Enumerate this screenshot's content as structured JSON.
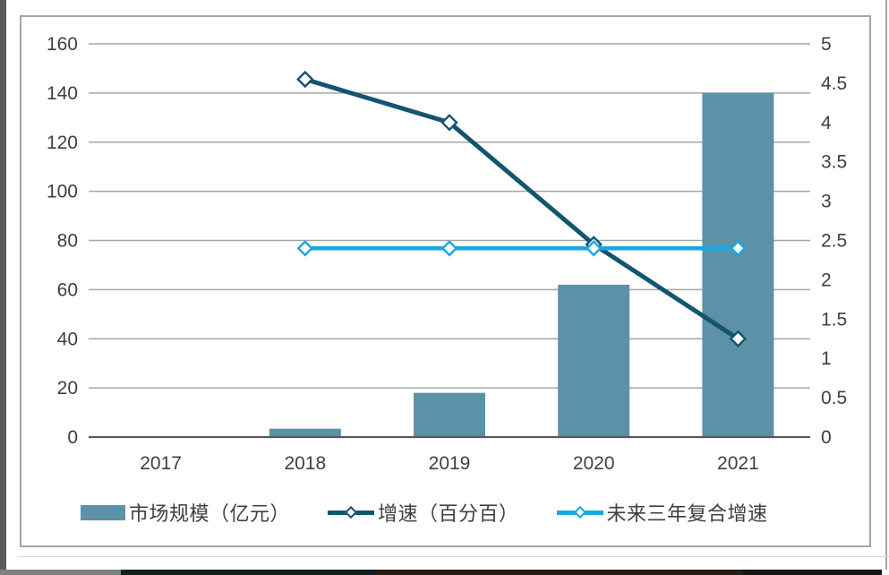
{
  "chart_data": {
    "type": "combo",
    "categories": [
      "2017",
      "2018",
      "2019",
      "2020",
      "2021"
    ],
    "series": [
      {
        "name": "市场规模（亿元）",
        "type": "bar",
        "axis": "left",
        "color": "#5c91a8",
        "values": [
          0,
          3.4,
          18,
          62,
          140
        ]
      },
      {
        "name": "增速（百分百）",
        "type": "line",
        "axis": "right",
        "color": "#13556e",
        "marker": "hollow-diamond",
        "x": [
          "2018",
          "2019",
          "2020",
          "2021"
        ],
        "values": [
          4.55,
          4.0,
          2.45,
          1.25
        ]
      },
      {
        "name": "未来三年复合增速",
        "type": "line",
        "axis": "right",
        "color": "#18a6e2",
        "marker": "hollow-diamond",
        "x": [
          "2018",
          "2019",
          "2020",
          "2021"
        ],
        "values": [
          2.4,
          2.4,
          2.4,
          2.4
        ]
      }
    ],
    "title": "",
    "xlabel": "",
    "ylabel_left": "",
    "ylabel_right": "",
    "left_axis": {
      "min": 0,
      "max": 160,
      "step": 20,
      "ticks": [
        "0",
        "20",
        "40",
        "60",
        "80",
        "100",
        "120",
        "140",
        "160"
      ]
    },
    "right_axis": {
      "min": 0,
      "max": 5,
      "step": 0.5,
      "ticks": [
        "0",
        "0.5",
        "1",
        "1.5",
        "2",
        "2.5",
        "3",
        "3.5",
        "4",
        "4.5",
        "5"
      ]
    },
    "grid": true,
    "legend_position": "bottom",
    "colors": {
      "gridline": "#a6a6a6",
      "axis_line": "#595959",
      "tick_text": "#404040",
      "frame_border": "#a6a6a6",
      "background": "#ffffff"
    }
  },
  "legend": {
    "items": [
      {
        "label": "市场规模（亿元）",
        "swatch": "bar",
        "color": "#5c91a8"
      },
      {
        "label": "增速（百分百）",
        "swatch": "line",
        "color": "#13556e"
      },
      {
        "label": "未来三年复合增速",
        "swatch": "line",
        "color": "#18a6e2"
      }
    ]
  },
  "window": {
    "left_edge_color": "#5a5a5a",
    "right_edge_color": "#a6a6a6",
    "divider_color": "#d9d9d9",
    "bottom_strip_colors": [
      "#7f7f7f",
      "#10201e",
      "#241d10",
      "#161616",
      "#ffffff"
    ]
  }
}
